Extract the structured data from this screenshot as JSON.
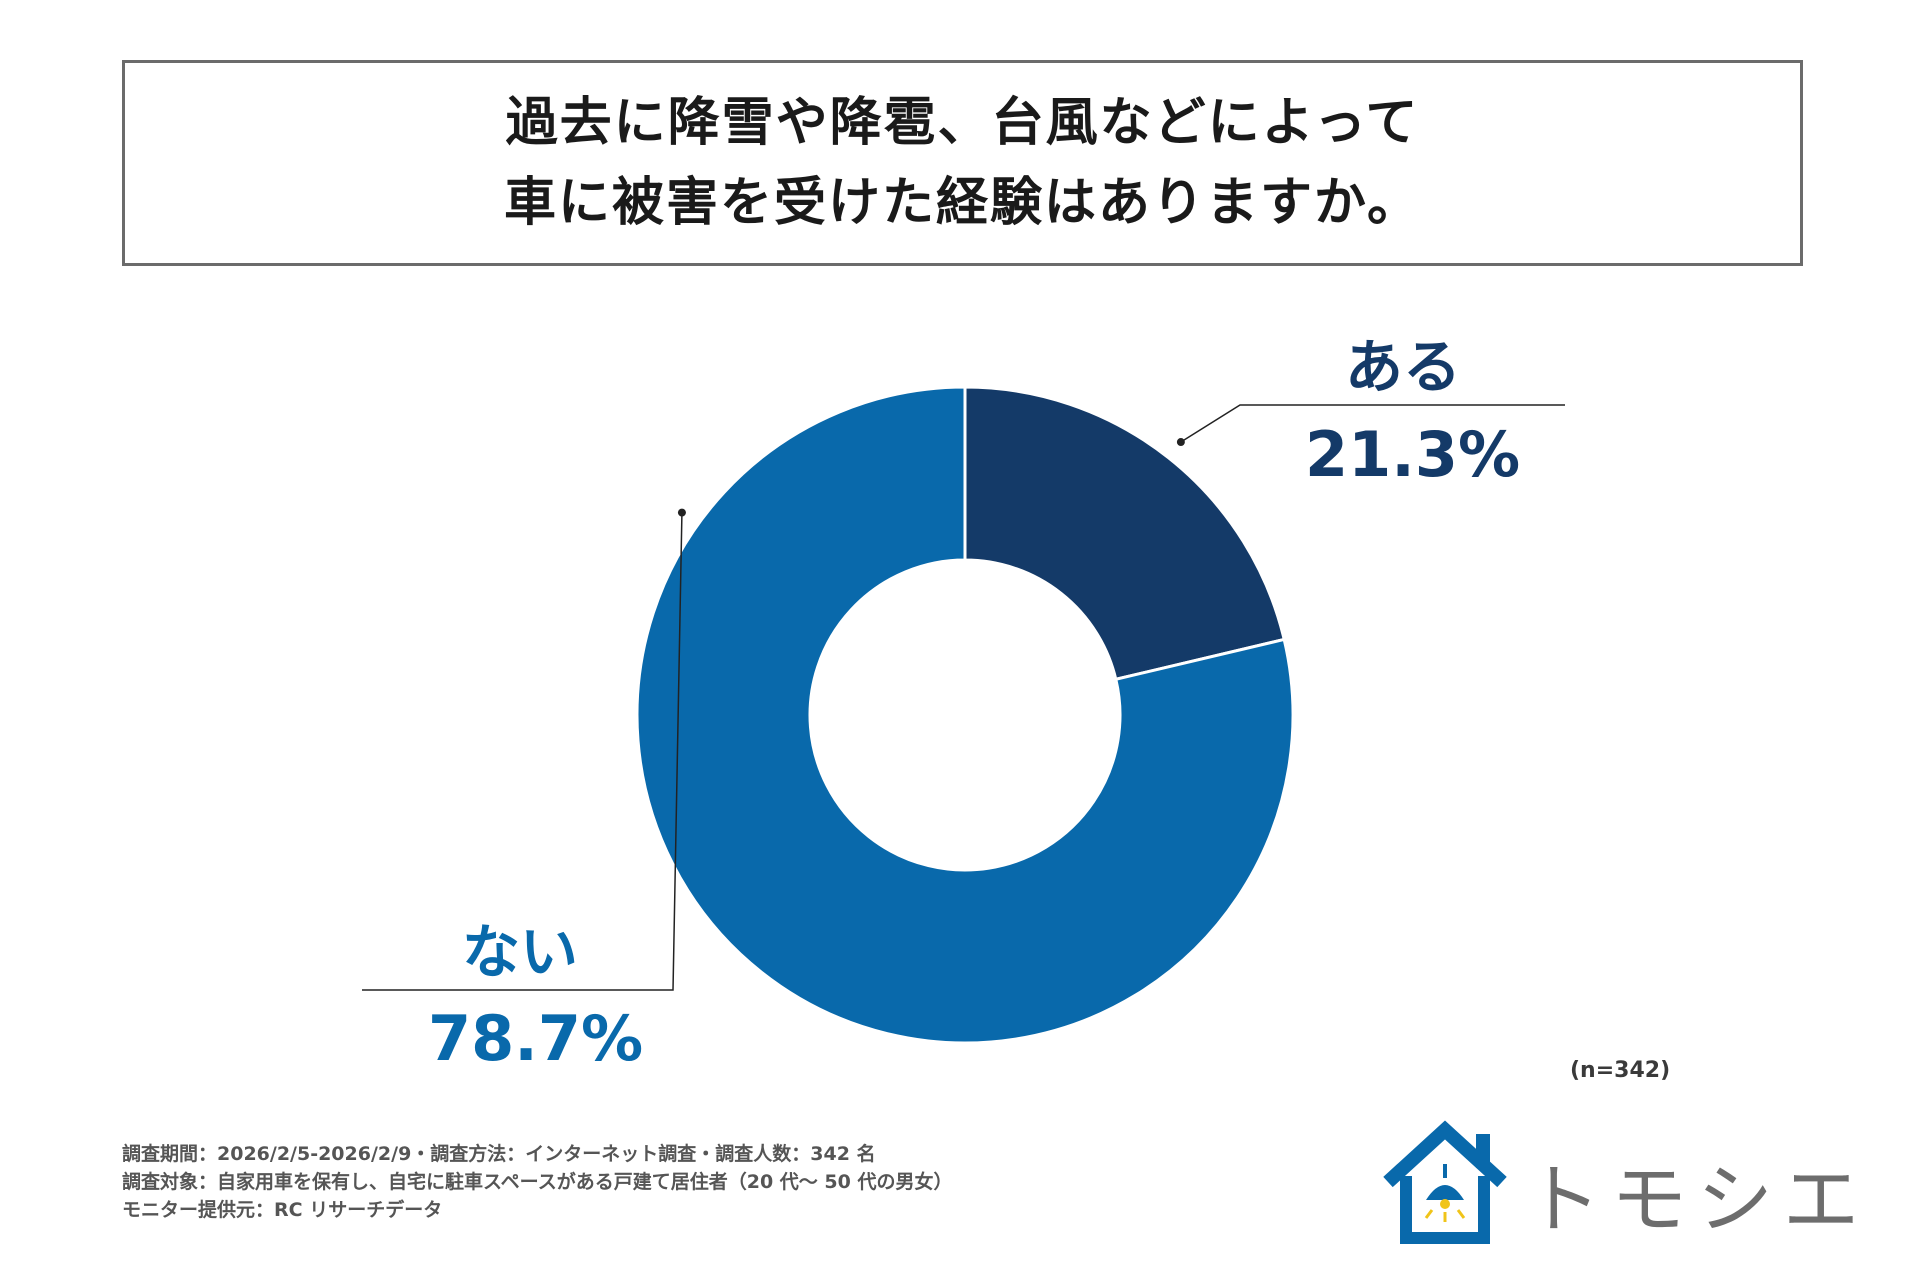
{
  "title": {
    "line1": "過去に降雪や降雹、台風などによって",
    "line2": "車に被害を受けた経験はありますか。"
  },
  "chart_data": {
    "type": "pie",
    "variant": "donut",
    "title": "過去に降雪や降雹、台風などによって車に被害を受けた経験はありますか。",
    "categories": [
      "ある",
      "ない"
    ],
    "values": [
      21.3,
      78.7
    ],
    "labels": [
      "21.3%",
      "78.7%"
    ],
    "colors": [
      "#143a68",
      "#0969ab"
    ],
    "start_angle": "12 o'clock",
    "direction": "clockwise",
    "sample": "(n=342)"
  },
  "notes": [
    "調査期間：2026/2/5-2026/2/9・調査方法：インターネット調査・調査人数：342 名",
    "調査対象：自家用車を保有し、自宅に駐車スペースがある戸建て居住者（20 代～ 50 代の男女）",
    "モニター提供元：RC リサーチデータ"
  ],
  "logo": {
    "text": "トモシエ",
    "icon": "house-lamp-icon",
    "color": "#0969ab"
  }
}
